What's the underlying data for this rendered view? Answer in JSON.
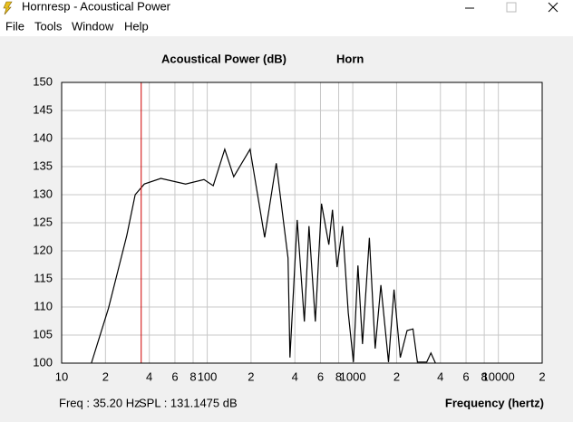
{
  "window": {
    "title": "Hornresp - Acoustical Power",
    "menu": [
      "File",
      "Tools",
      "Window",
      "Help"
    ]
  },
  "chart_data": {
    "type": "line",
    "title": "Acoustical Power (dB)",
    "subtitle": "Horn",
    "x_label": "Frequency (hertz)",
    "xscale": "log",
    "grid": true,
    "xlim": [
      10,
      20000
    ],
    "xticks": [
      10,
      {
        "value": 20,
        "label": "2"
      },
      {
        "value": 40,
        "label": "4"
      },
      {
        "value": 60,
        "label": "6"
      },
      {
        "value": 80,
        "label": "8"
      },
      100,
      {
        "value": 200,
        "label": "2"
      },
      {
        "value": 400,
        "label": "4"
      },
      {
        "value": 600,
        "label": "6"
      },
      {
        "value": 800,
        "label": "8"
      },
      1000,
      {
        "value": 2000,
        "label": "2"
      },
      {
        "value": 4000,
        "label": "4"
      },
      {
        "value": 6000,
        "label": "6"
      },
      {
        "value": 8000,
        "label": "8"
      },
      10000,
      {
        "value": 20000,
        "label": "2"
      }
    ],
    "ylim": [
      100,
      150
    ],
    "yticks": [
      100,
      105,
      110,
      115,
      120,
      125,
      130,
      135,
      140,
      145,
      150
    ],
    "series": [
      {
        "name": "Horn",
        "color": "#000000",
        "x": [
          16,
          21,
          28,
          32,
          37,
          48,
          71,
          95,
          110,
          132,
          152,
          197,
          248,
          298,
          359,
          370,
          415,
          465,
          500,
          553,
          610,
          685,
          725,
          780,
          850,
          930,
          1010,
          1085,
          1165,
          1300,
          1425,
          1560,
          1760,
          1920,
          2120,
          2360,
          2590,
          2780,
          3220,
          3440,
          3700
        ],
        "values": [
          100,
          109.8,
          122.7,
          130,
          131.9,
          132.9,
          131.9,
          132.7,
          131.6,
          138.1,
          133.2,
          138.1,
          122.4,
          135.6,
          118.7,
          101,
          125.5,
          107.4,
          124.4,
          107.4,
          128.4,
          121.1,
          127.3,
          117.1,
          124.4,
          109,
          100.2,
          117.4,
          103.4,
          122.3,
          102.6,
          113.9,
          100.2,
          113.1,
          101,
          105.8,
          106.1,
          100.2,
          100.2,
          101.8,
          100
        ]
      }
    ],
    "cursor": {
      "freq": 35.2,
      "freq_label": "Freq : 35.20 Hz",
      "spl": 131.1475,
      "spl_label": "SPL : 131.1475 dB",
      "color": "#d00000"
    }
  }
}
